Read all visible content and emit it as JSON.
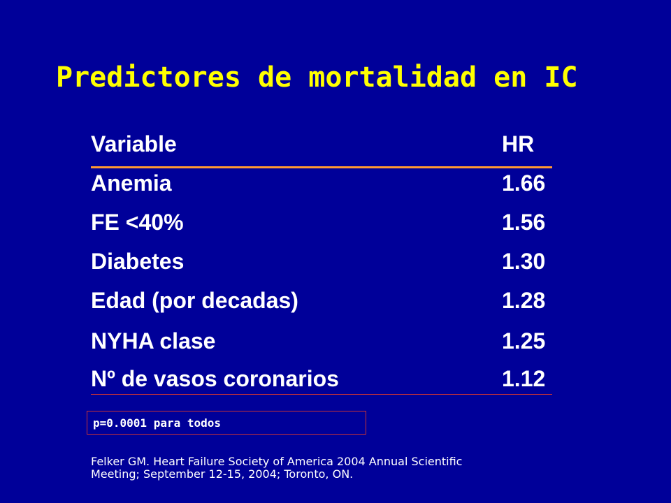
{
  "title": "Predictores de mortalidad en IC",
  "table": {
    "headers": {
      "variable": "Variable",
      "hr": "HR"
    },
    "rows": [
      {
        "variable": "Anemia",
        "hr": "1.66"
      },
      {
        "variable": "FE <40%",
        "hr": "1.56"
      },
      {
        "variable": "Diabetes",
        "hr": "1.30"
      },
      {
        "variable": "Edad (por decadas)",
        "hr": "1.28"
      },
      {
        "variable": "NYHA clase",
        "hr": "1.25"
      },
      {
        "variable": "Nº de vasos coronarios",
        "hr": "1.12"
      }
    ]
  },
  "p_note": "p=0.0001 para todos",
  "reference": {
    "line1": "Felker GM. Heart Failure Society of America 2004 Annual Scientific",
    "line2": "Meeting; September 12-15, 2004; Toronto, ON."
  },
  "colors": {
    "background": "#000099",
    "title": "#ffff00",
    "text": "#ffffff",
    "header_rule": "#ff9933",
    "rule": "#cc3333"
  }
}
